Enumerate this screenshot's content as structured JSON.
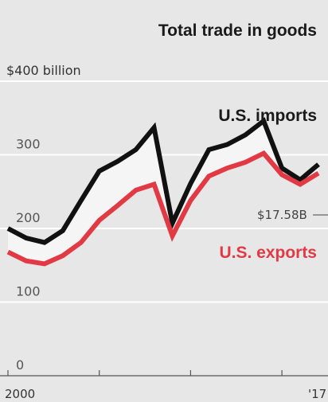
{
  "chart_data": {
    "type": "line",
    "title": "Total trade in goods",
    "unit_label": "$400 billion",
    "y_ticks": [
      "300",
      "200",
      "100",
      "0"
    ],
    "ylim": [
      0,
      400
    ],
    "x_ticks": [
      "2000",
      "'17"
    ],
    "x_tick_positions": [
      2000,
      2017
    ],
    "xlim": [
      2000,
      2017
    ],
    "grid": true,
    "x": [
      2000,
      2001,
      2002,
      2003,
      2004,
      2005,
      2006,
      2007,
      2008,
      2009,
      2010,
      2011,
      2012,
      2013,
      2014,
      2015,
      2016,
      2017
    ],
    "series": [
      {
        "name": "U.S. imports",
        "color": "#111111",
        "values": [
          200,
          187,
          181,
          197,
          238,
          278,
          291,
          307,
          337,
          207,
          261,
          307,
          314,
          327,
          346,
          282,
          266,
          287
        ]
      },
      {
        "name": "U.S. exports",
        "color": "#e23a45",
        "values": [
          168,
          156,
          152,
          163,
          181,
          211,
          231,
          252,
          260,
          190,
          238,
          271,
          282,
          290,
          302,
          273,
          260,
          275
        ]
      }
    ],
    "fill_between": {
      "color": "#f5f5f5"
    },
    "annotation": "$17.58B"
  }
}
